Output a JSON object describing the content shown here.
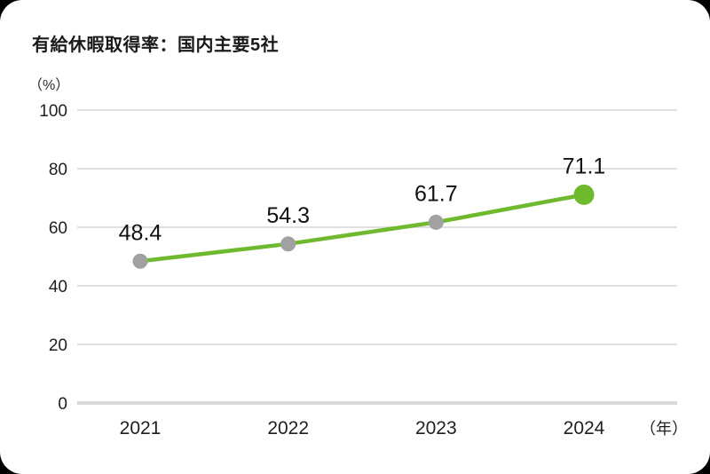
{
  "card": {
    "background": "#ffffff",
    "outside_background": "#000000"
  },
  "chart_data": {
    "type": "line",
    "title": "有給休暇取得率：国内主要5社",
    "unit_label": "（%）",
    "x_unit_label": "（年）",
    "categories": [
      "2021",
      "2022",
      "2023",
      "2024"
    ],
    "series": [
      {
        "name": "有給休暇取得率",
        "values": [
          48.4,
          54.3,
          61.7,
          71.1
        ]
      }
    ],
    "data_labels": [
      "48.4",
      "54.3",
      "61.7",
      "71.1"
    ],
    "y_ticks": [
      0,
      20,
      40,
      60,
      80,
      100
    ],
    "y_tick_labels": [
      "0",
      "20",
      "40",
      "60",
      "80",
      "100"
    ],
    "ylim": [
      0,
      100
    ],
    "grid": "horizontal",
    "legend": "none",
    "colors": {
      "line": "#6eb92d",
      "marker": "#a1a1a1",
      "last_marker": "#6eb92d",
      "gridline": "#e0e0e0",
      "baseline": "#d9d9d9",
      "axis_text": "#1f1f1f",
      "data_label_text": "#111111",
      "title_text": "#1a1a1a"
    }
  }
}
